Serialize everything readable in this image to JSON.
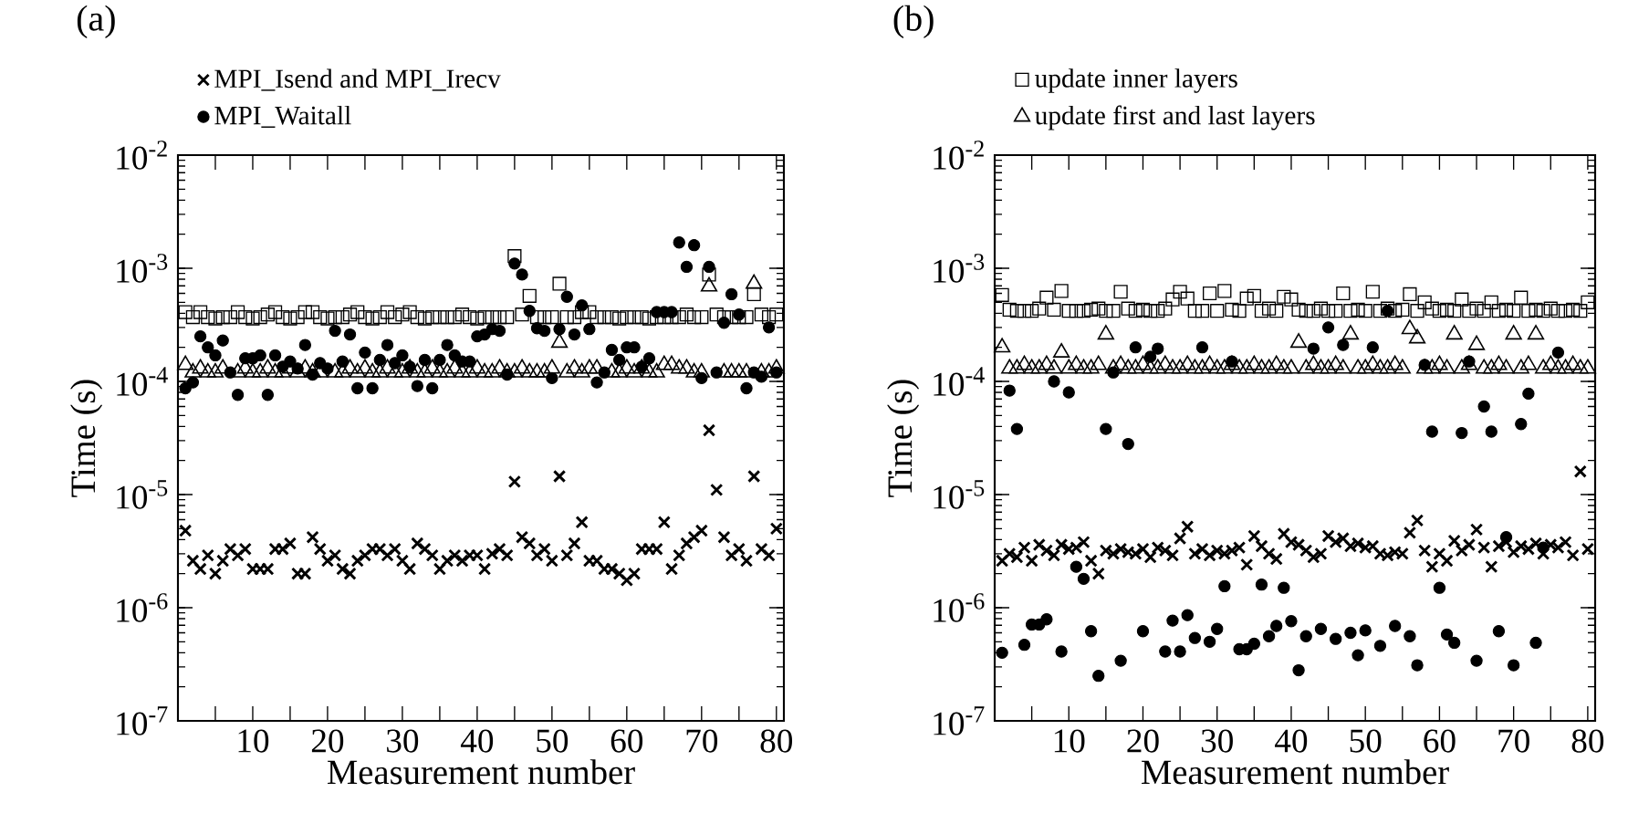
{
  "chart_data": [
    {
      "type": "scatter",
      "title": "(a)",
      "xlabel": "Measurement number",
      "ylabel": "Time (s)",
      "log": "y",
      "legend": "top",
      "x": [
        1,
        2,
        3,
        4,
        5,
        6,
        7,
        8,
        9,
        10,
        11,
        12,
        13,
        14,
        15,
        16,
        17,
        18,
        19,
        20,
        21,
        22,
        23,
        24,
        25,
        26,
        27,
        28,
        29,
        30,
        31,
        32,
        33,
        34,
        35,
        36,
        37,
        38,
        39,
        40,
        41,
        42,
        43,
        44,
        45,
        46,
        47,
        48,
        49,
        50,
        51,
        52,
        53,
        54,
        55,
        56,
        57,
        58,
        59,
        60,
        61,
        62,
        63,
        64,
        65,
        66,
        67,
        68,
        69,
        70,
        71,
        72,
        73,
        74,
        75,
        76,
        77,
        78,
        79,
        80
      ],
      "xlim": [
        0,
        81
      ],
      "xticks": [
        {
          "value": 5,
          "label": null
        },
        10,
        {
          "value": 15,
          "label": null
        },
        20,
        {
          "value": 25,
          "label": null
        },
        30,
        {
          "value": 35,
          "label": null
        },
        40,
        {
          "value": 45,
          "label": null
        },
        50,
        {
          "value": 55,
          "label": null
        },
        60,
        {
          "value": 65,
          "label": null
        },
        70,
        {
          "value": 75,
          "label": null
        },
        80
      ],
      "ylim": [
        1e-07,
        0.01
      ],
      "yticks": [
        {
          "value": 1e-07,
          "label": "10$^{-7}$"
        },
        {
          "value": 1e-06,
          "label": "10$^{-6}$"
        },
        {
          "value": 1e-05,
          "label": "10$^{-5}$"
        },
        {
          "value": 0.0001,
          "label": "10$^{-4}$"
        },
        {
          "value": 0.001,
          "label": "10$^{-3}$"
        },
        {
          "value": 0.01,
          "label": "10$^{-2}$"
        }
      ],
      "series": [
        {
          "name": "MPI_Isend and MPI_Irecv",
          "color": "#000000",
          "marker": "cross",
          "values": [
            4.8e-06,
            2.6e-06,
            2.2e-06,
            2.9e-06,
            2e-06,
            2.6e-06,
            3.3e-06,
            2.9e-06,
            3.3e-06,
            2.2e-06,
            2.2e-06,
            2.2e-06,
            3.3e-06,
            3.3e-06,
            3.7e-06,
            2e-06,
            2e-06,
            4.2e-06,
            3.3e-06,
            2.6e-06,
            2.9e-06,
            2.2e-06,
            2e-06,
            2.6e-06,
            2.9e-06,
            3.3e-06,
            3.3e-06,
            2.9e-06,
            3.3e-06,
            2.6e-06,
            2.2e-06,
            3.7e-06,
            3.3e-06,
            2.9e-06,
            2.2e-06,
            2.6e-06,
            2.9e-06,
            2.6e-06,
            2.9e-06,
            2.9e-06,
            2.2e-06,
            3e-06,
            3.3e-06,
            2.9e-06,
            1.3e-05,
            4.2e-06,
            3.7e-06,
            2.9e-06,
            3.3e-06,
            2.6e-06,
            1.45e-05,
            2.9e-06,
            3.7e-06,
            5.7e-06,
            2.6e-06,
            2.6e-06,
            2.2e-06,
            2.2e-06,
            2e-06,
            1.75e-06,
            2e-06,
            3.3e-06,
            3.3e-06,
            3.3e-06,
            5.7e-06,
            2.2e-06,
            2.9e-06,
            3.7e-06,
            4.2e-06,
            4.8e-06,
            3.7e-05,
            1.1e-05,
            4.2e-06,
            2.9e-06,
            3.3e-06,
            2.6e-06,
            1.45e-05,
            3.3e-06,
            2.9e-06,
            5e-06
          ]
        },
        {
          "name": "MPI_Waitall",
          "color": "#000000",
          "marker": "circle",
          "values": [
            8.7e-05,
            9.8e-05,
            0.00025,
            0.0002,
            0.00017,
            0.00023,
            0.00012,
            7.6e-05,
            0.00016,
            0.00016,
            0.00017,
            7.6e-05,
            0.00017,
            0.000135,
            0.00015,
            0.00013,
            0.00021,
            0.000115,
            0.000145,
            0.00013,
            0.00028,
            0.00015,
            0.00026,
            8.7e-05,
            0.00018,
            8.7e-05,
            0.000155,
            0.00021,
            0.000145,
            0.00017,
            0.000135,
            9.1e-05,
            0.000155,
            8.7e-05,
            0.000155,
            0.00021,
            0.00017,
            0.00015,
            0.00015,
            0.00025,
            0.00026,
            0.00029,
            0.00028,
            0.000115,
            0.0011,
            0.00088,
            0.00042,
            0.000295,
            0.00028,
            0.000107,
            0.00029,
            0.00056,
            0.00026,
            0.00047,
            0.00029,
            9.8e-05,
            0.00012,
            0.00019,
            0.000155,
            0.0002,
            0.0002,
            0.000135,
            0.00016,
            0.00041,
            0.00041,
            0.00041,
            0.00169,
            0.00103,
            0.0016,
            0.000107,
            0.00103,
            0.00012,
            0.00033,
            0.00059,
            0.00039,
            8.7e-05,
            0.00012,
            0.00011,
            0.0003,
            0.00012
          ]
        },
        {
          "color": "#000000",
          "marker": "square",
          "values": [
            0.00041,
            0.00037,
            0.00041,
            0.00037,
            0.00036,
            0.00037,
            0.00037,
            0.00041,
            0.00037,
            0.00036,
            0.00037,
            0.00039,
            0.00041,
            0.00037,
            0.00036,
            0.00037,
            0.00041,
            0.00041,
            0.00037,
            0.00036,
            0.00037,
            0.00037,
            0.00039,
            0.00041,
            0.00037,
            0.00036,
            0.00037,
            0.00041,
            0.00037,
            0.00039,
            0.00041,
            0.00037,
            0.00036,
            0.00037,
            0.00037,
            0.00037,
            0.00037,
            0.00039,
            0.00037,
            0.00036,
            0.00037,
            0.00037,
            0.00037,
            0.00037,
            0.00128,
            0.00039,
            0.00057,
            0.00037,
            0.00037,
            0.00037,
            0.00073,
            0.00037,
            0.00037,
            0.00041,
            0.00041,
            0.00037,
            0.00037,
            0.00037,
            0.00036,
            0.00037,
            0.00037,
            0.00037,
            0.00036,
            0.00037,
            0.00037,
            0.00037,
            0.00037,
            0.00039,
            0.00037,
            0.00037,
            0.00088,
            0.00039,
            0.00037,
            0.00037,
            0.00037,
            0.00037,
            0.00059,
            0.00039,
            0.00037,
            0.00039
          ]
        },
        {
          "color": "#000000",
          "marker": "triangle",
          "values": [
            0.00014,
            0.00012,
            0.00013,
            0.00012,
            0.00012,
            0.00013,
            null,
            0.00012,
            0.00013,
            0.00012,
            0.00012,
            0.00013,
            0.00012,
            0.00012,
            0.00013,
            0.00012,
            0.00013,
            0.00012,
            0.00012,
            null,
            0.00012,
            0.00012,
            0.00013,
            0.00012,
            0.00013,
            0.00012,
            0.00012,
            0.00013,
            0.00012,
            0.00012,
            0.00013,
            0.00012,
            0.00012,
            0.00013,
            0.00012,
            0.00012,
            0.00013,
            0.00012,
            0.00012,
            0.00013,
            0.00012,
            0.00012,
            0.00013,
            0.00012,
            0.00012,
            0.00013,
            0.00012,
            0.00012,
            0.00012,
            0.00013,
            0.00022,
            0.00012,
            0.00013,
            0.00012,
            0.00013,
            0.00013,
            null,
            0.00012,
            0.00012,
            0.00013,
            0.00012,
            0.00013,
            0.00012,
            0.00012,
            0.00014,
            0.00014,
            0.00013,
            0.00013,
            0.00012,
            0.00012,
            0.00069,
            null,
            0.00012,
            0.00012,
            0.00012,
            0.00012,
            0.00073,
            0.00012,
            0.00012,
            0.00013
          ]
        }
      ]
    },
    {
      "type": "scatter",
      "title": "(b)",
      "xlabel": "Measurement number",
      "ylabel": "Time (s)",
      "log": "y",
      "legend": "top",
      "x": [
        1,
        2,
        3,
        4,
        5,
        6,
        7,
        8,
        9,
        10,
        11,
        12,
        13,
        14,
        15,
        16,
        17,
        18,
        19,
        20,
        21,
        22,
        23,
        24,
        25,
        26,
        27,
        28,
        29,
        30,
        31,
        32,
        33,
        34,
        35,
        36,
        37,
        38,
        39,
        40,
        41,
        42,
        43,
        44,
        45,
        46,
        47,
        48,
        49,
        50,
        51,
        52,
        53,
        54,
        55,
        56,
        57,
        58,
        59,
        60,
        61,
        62,
        63,
        64,
        65,
        66,
        67,
        68,
        69,
        70,
        71,
        72,
        73,
        74,
        75,
        76,
        77,
        78,
        79,
        80
      ],
      "xlim": [
        0,
        81
      ],
      "xticks": [
        {
          "value": 5,
          "label": null
        },
        10,
        {
          "value": 15,
          "label": null
        },
        20,
        {
          "value": 25,
          "label": null
        },
        30,
        {
          "value": 35,
          "label": null
        },
        40,
        {
          "value": 45,
          "label": null
        },
        50,
        {
          "value": 55,
          "label": null
        },
        60,
        {
          "value": 65,
          "label": null
        },
        70,
        {
          "value": 75,
          "label": null
        },
        80
      ],
      "ylim": [
        1e-07,
        0.01
      ],
      "yticks": [
        {
          "value": 1e-07,
          "label": "10$^{-7}$"
        },
        {
          "value": 1e-06,
          "label": "10$^{-6}$"
        },
        {
          "value": 1e-05,
          "label": "10$^{-5}$"
        },
        {
          "value": 0.0001,
          "label": "10$^{-4}$"
        },
        {
          "value": 0.001,
          "label": "10$^{-3}$"
        },
        {
          "value": 0.01,
          "label": "10$^{-2}$"
        }
      ],
      "series": [
        {
          "color": "#000000",
          "marker": "cross",
          "values": [
            2.6e-06,
            3e-06,
            2.8e-06,
            3.4e-06,
            2.6e-06,
            3.6e-06,
            3.2e-06,
            2.9e-06,
            3.6e-06,
            3.3e-06,
            3.4e-06,
            3.8e-06,
            2.6e-06,
            2e-06,
            3.2e-06,
            3e-06,
            3.3e-06,
            3.1e-06,
            3e-06,
            3.3e-06,
            2.8e-06,
            3.4e-06,
            3.2e-06,
            2.9e-06,
            4.1e-06,
            5.2e-06,
            3e-06,
            3.3e-06,
            2.9e-06,
            3.2e-06,
            3e-06,
            3.2e-06,
            3.4e-06,
            2.4e-06,
            4.3e-06,
            3.5e-06,
            3e-06,
            2.7e-06,
            4.5e-06,
            3.8e-06,
            3.6e-06,
            3.2e-06,
            2.8e-06,
            3e-06,
            4.3e-06,
            3.8e-06,
            4.1e-06,
            3.5e-06,
            3.7e-06,
            3.4e-06,
            3.5e-06,
            3e-06,
            2.9e-06,
            3.1e-06,
            3e-06,
            4.6e-06,
            5.9e-06,
            3.2e-06,
            2.3e-06,
            3e-06,
            2.6e-06,
            3.9e-06,
            3.2e-06,
            3.6e-06,
            4.9e-06,
            3.4e-06,
            2.3e-06,
            3.5e-06,
            3.8e-06,
            3.1e-06,
            3.5e-06,
            3.3e-06,
            3.7e-06,
            3e-06,
            3.6e-06,
            3.4e-06,
            3.8e-06,
            2.9e-06,
            1.6e-05,
            3.3e-06
          ]
        },
        {
          "color": "#000000",
          "marker": "circle",
          "values": [
            4e-07,
            8.3e-05,
            3.8e-05,
            4.7e-07,
            7.1e-07,
            7.1e-07,
            7.9e-07,
            0.0001,
            4.1e-07,
            8e-05,
            2.3e-06,
            1.8e-06,
            6.2e-07,
            2.5e-07,
            3.8e-05,
            0.00012,
            3.4e-07,
            2.8e-05,
            0.0002,
            6.2e-07,
            0.000165,
            0.000195,
            4.1e-07,
            7.7e-07,
            4.1e-07,
            8.6e-07,
            5.4e-07,
            0.0002,
            5e-07,
            6.5e-07,
            1.55e-06,
            0.00015,
            4.3e-07,
            4.3e-07,
            4.8e-07,
            1.6e-06,
            5.6e-07,
            6.9e-07,
            1.5e-06,
            7.6e-07,
            2.8e-07,
            5.6e-07,
            0.000195,
            6.5e-07,
            0.0003,
            5.3e-07,
            0.00021,
            6e-07,
            3.8e-07,
            6.3e-07,
            0.0002,
            4.6e-07,
            0.00042,
            6.9e-07,
            null,
            5.6e-07,
            3.1e-07,
            0.00014,
            3.6e-05,
            1.5e-06,
            5.8e-07,
            4.9e-07,
            3.5e-05,
            0.00015,
            3.4e-07,
            6e-05,
            3.6e-05,
            6.2e-07,
            4.2e-06,
            3.1e-07,
            4.2e-05,
            7.8e-05,
            4.9e-07,
            3.4e-06,
            null,
            0.00018,
            null,
            null,
            null,
            null
          ]
        },
        {
          "name": "update inner layers",
          "color": "#000000",
          "marker": "square",
          "values": [
            0.00058,
            0.00043,
            0.00042,
            0.00042,
            0.00042,
            0.00044,
            0.00055,
            0.00043,
            0.00063,
            0.00042,
            0.00042,
            0.00042,
            0.00043,
            0.00044,
            0.00042,
            0.00042,
            0.00062,
            0.00044,
            0.00042,
            0.00043,
            0.00042,
            0.00042,
            0.00044,
            0.00053,
            0.00062,
            0.00054,
            0.00042,
            0.00042,
            0.0006,
            0.00042,
            0.00063,
            0.00043,
            0.00042,
            0.00054,
            0.00057,
            0.00042,
            0.00044,
            0.00042,
            0.00056,
            0.00053,
            0.00043,
            0.00042,
            0.00042,
            0.00044,
            0.00042,
            0.00042,
            0.0006,
            0.00042,
            0.00043,
            0.00042,
            0.00062,
            0.00042,
            0.00044,
            0.00042,
            0.00043,
            0.00059,
            0.00042,
            0.0005,
            0.00044,
            0.00042,
            0.00043,
            0.00042,
            0.00053,
            0.00042,
            0.00044,
            0.00042,
            0.0005,
            0.00042,
            0.00043,
            0.00042,
            0.00055,
            0.00042,
            0.00043,
            0.00042,
            0.00044,
            0.00042,
            0.00042,
            0.00043,
            0.00042,
            0.0005
          ]
        },
        {
          "name": "update first and last layers",
          "color": "#000000",
          "marker": "triangle",
          "values": [
            0.0002,
            0.00013,
            0.00013,
            0.00014,
            0.00013,
            0.00013,
            0.00014,
            0.00013,
            0.00018,
            0.00013,
            0.00014,
            0.00013,
            0.00013,
            0.00014,
            0.00026,
            0.00013,
            0.00014,
            0.00013,
            0.00013,
            0.00014,
            0.00013,
            0.00013,
            0.00014,
            0.00013,
            0.00013,
            0.00014,
            0.00013,
            0.00013,
            0.00014,
            0.00013,
            0.00013,
            0.00014,
            0.00013,
            0.00013,
            0.00014,
            0.00013,
            0.00013,
            0.00014,
            0.00013,
            0.00013,
            0.00022,
            0.00013,
            0.00014,
            0.00013,
            0.00013,
            0.00014,
            0.00013,
            0.00026,
            0.00013,
            0.00013,
            0.00014,
            0.00013,
            0.00013,
            0.00014,
            0.00013,
            0.00029,
            0.00024,
            0.00013,
            0.00013,
            0.00014,
            0.00013,
            0.00026,
            0.00013,
            0.00014,
            0.00021,
            0.00013,
            0.00013,
            0.00014,
            0.00013,
            0.00026,
            0.00013,
            0.00014,
            0.00026,
            0.00013,
            0.00014,
            0.00013,
            0.00013,
            0.00014,
            0.00013,
            0.00013
          ]
        }
      ]
    }
  ]
}
